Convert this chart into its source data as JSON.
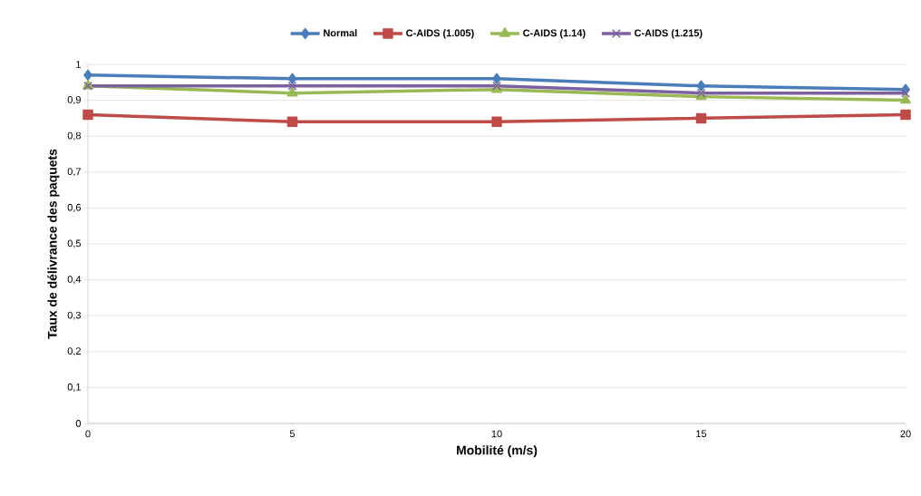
{
  "chart_data": {
    "type": "line",
    "xlabel": "Mobilité (m/s)",
    "ylabel": "Taux de délivrance des paquets",
    "x": [
      0,
      5,
      10,
      15,
      20
    ],
    "series": [
      {
        "name": "Normal",
        "color": "#4a7ebb",
        "marker": "diamond",
        "values": [
          0.97,
          0.96,
          0.96,
          0.94,
          0.93
        ]
      },
      {
        "name": "C-AIDS (1.005)",
        "color": "#be4b48",
        "marker": "square",
        "values": [
          0.86,
          0.84,
          0.84,
          0.85,
          0.86
        ]
      },
      {
        "name": "C-AIDS (1.14)",
        "color": "#98b954",
        "marker": "triangle",
        "values": [
          0.94,
          0.92,
          0.93,
          0.91,
          0.9
        ]
      },
      {
        "name": "C-AIDS (1.215)",
        "color": "#7d60a0",
        "marker": "cross",
        "values": [
          0.94,
          0.94,
          0.94,
          0.92,
          0.92
        ]
      }
    ],
    "xlim": [
      0,
      20
    ],
    "xticks": [
      0,
      5,
      10,
      15,
      20
    ],
    "ylim": [
      0,
      1
    ],
    "yticks": [
      0,
      {
        "value": 0.1,
        "label": "0,1"
      },
      {
        "value": 0.2,
        "label": "0,2"
      },
      {
        "value": 0.3,
        "label": "0,3"
      },
      {
        "value": 0.4,
        "label": "0,4"
      },
      {
        "value": 0.5,
        "label": "0,5"
      },
      {
        "value": 0.6,
        "label": "0,6"
      },
      {
        "value": 0.7,
        "label": "0,7"
      },
      {
        "value": 0.8,
        "label": "0,8"
      },
      {
        "value": 0.9,
        "label": "0,9"
      },
      1
    ],
    "grid": "y",
    "legend": "top",
    "line_style": "solid"
  }
}
